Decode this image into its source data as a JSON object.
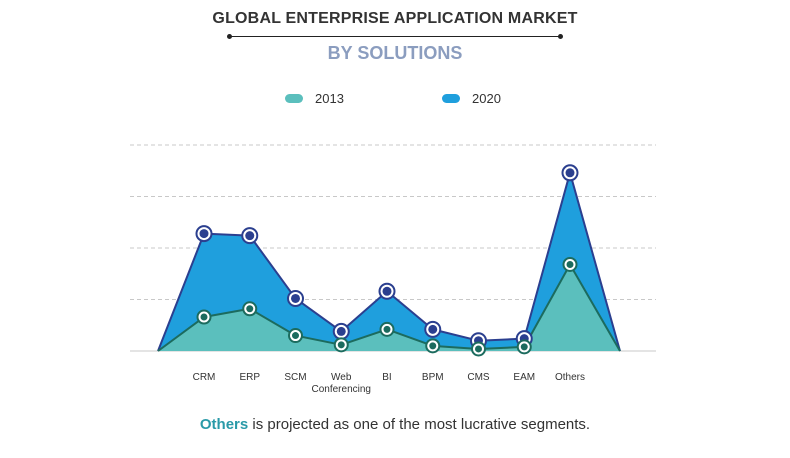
{
  "chart_data": {
    "type": "area",
    "title": "GLOBAL ENTERPRISE APPLICATION MARKET",
    "subtitle": "BY SOLUTIONS",
    "categories": [
      "CRM",
      "ERP",
      "SCM",
      "Web Conferencing",
      "BI",
      "BPM",
      "CMS",
      "EAM",
      "Others"
    ],
    "series": [
      {
        "name": "2013",
        "color": "#5bbfbd",
        "values": [
          33,
          41,
          15,
          6,
          21,
          5,
          2,
          4,
          84
        ]
      },
      {
        "name": "2020",
        "color": "#1f9fdd",
        "values": [
          114,
          112,
          51,
          19,
          58,
          21,
          10,
          12,
          173
        ]
      }
    ],
    "ylim": [
      0,
      200
    ],
    "grid": true,
    "legend_position": "top-center"
  },
  "caption": {
    "highlight": "Others",
    "text": " is projected as one of the most lucrative segments."
  }
}
